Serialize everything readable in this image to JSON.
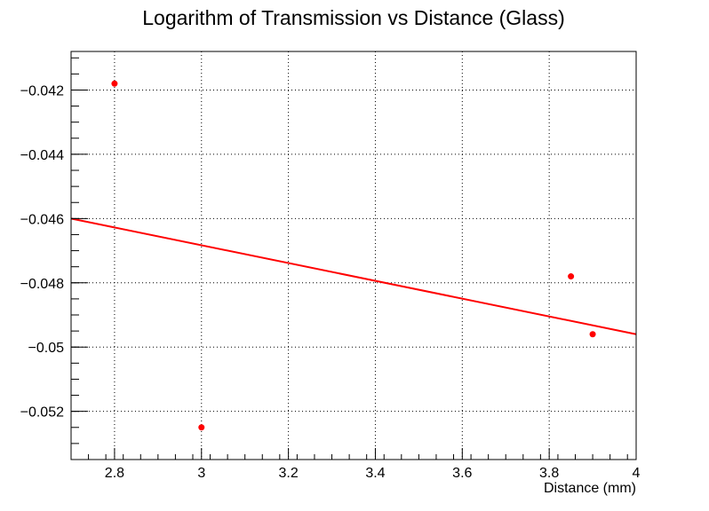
{
  "chart_data": {
    "type": "scatter",
    "title": "Logarithm of Transmission vs Distance (Glass)",
    "xlabel": "Distance (mm)",
    "ylabel": "",
    "xlim": [
      2.7,
      4.0
    ],
    "ylim": [
      -0.0535,
      -0.0408
    ],
    "x_ticks": [
      2.8,
      3.0,
      3.2,
      3.4,
      3.6,
      3.8,
      4.0
    ],
    "x_tick_labels": [
      "2.8",
      "3",
      "3.2",
      "3.4",
      "3.6",
      "3.8",
      "4"
    ],
    "y_ticks": [
      -0.052,
      -0.05,
      -0.048,
      -0.046,
      -0.044,
      -0.042
    ],
    "y_tick_labels": [
      "−0.052",
      "−0.05",
      "−0.048",
      "−0.046",
      "−0.044",
      "−0.042"
    ],
    "grid": true,
    "series": [
      {
        "kind": "points",
        "color": "#ff0000",
        "x": [
          2.8,
          3.0,
          3.85,
          3.9
        ],
        "y": [
          -0.0418,
          -0.0525,
          -0.0478,
          -0.0496
        ]
      },
      {
        "kind": "fit-line",
        "color": "#ff0000",
        "x": [
          2.7,
          4.0
        ],
        "y": [
          -0.046,
          -0.0496
        ]
      }
    ]
  }
}
